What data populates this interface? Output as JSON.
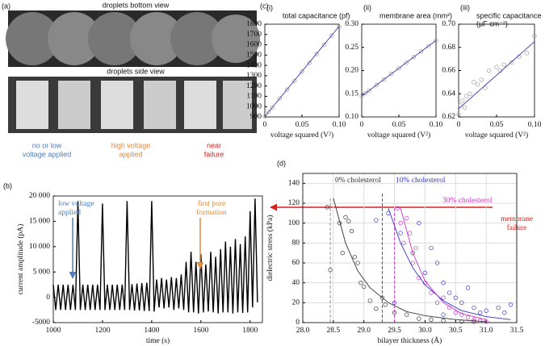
{
  "figure": {
    "label_a": "(a)",
    "label_c": "(c)",
    "bottom_view": "droplets bottom view",
    "side_view": "droplets side view",
    "captions": [
      {
        "lines": [
          "no or low",
          "voltage applied"
        ],
        "color": "#4a7fc1"
      },
      {
        "lines": [
          "high voltage",
          "applied"
        ],
        "color": "#e08a3c"
      },
      {
        "lines": [
          "near",
          "failure"
        ],
        "color": "#d62020"
      }
    ]
  },
  "chart_data": [
    {
      "type": "scatter",
      "label": "(i)",
      "title": [
        "total capacitance (pf)"
      ],
      "xlabel": "voltage squared (V²)",
      "xlim": [
        0,
        0.1
      ],
      "ylim": [
        900,
        1800
      ],
      "xticks": [
        0,
        0.05,
        {
          "value": 0.1,
          "label": "0.10"
        }
      ],
      "yticks": [
        900,
        1000,
        1100,
        1200,
        1300,
        1400,
        1500,
        1600,
        1700,
        1800
      ],
      "series": [
        {
          "mode": "markers",
          "color": "#999999",
          "x": [
            0,
            0.005,
            0.01,
            0.02,
            0.03,
            0.04,
            0.05,
            0.06,
            0.07,
            0.08,
            0.09,
            0.1
          ],
          "values": [
            905,
            950,
            990,
            1080,
            1165,
            1250,
            1340,
            1425,
            1510,
            1600,
            1690,
            1775
          ]
        },
        {
          "mode": "line",
          "color": "#3a3ab0",
          "x": [
            0,
            0.1
          ],
          "values": [
            905,
            1780
          ]
        }
      ]
    },
    {
      "type": "scatter",
      "label": "(ii)",
      "title": [
        "membrane area (mm²)"
      ],
      "xlabel": "voltage squared (V²)",
      "xlim": [
        0,
        0.1
      ],
      "ylim": [
        0.1,
        0.3
      ],
      "xticks": [
        0,
        0.05,
        {
          "value": 0.1,
          "label": "0.10"
        }
      ],
      "yticks": [
        {
          "value": 0.1,
          "label": "0.10"
        },
        0.15,
        {
          "value": 0.2,
          "label": "0.20"
        },
        0.25,
        {
          "value": 0.3,
          "label": "0.30"
        }
      ],
      "series": [
        {
          "mode": "markers",
          "color": "#999999",
          "x": [
            0,
            0.005,
            0.01,
            0.02,
            0.03,
            0.04,
            0.05,
            0.06,
            0.07,
            0.08,
            0.09,
            0.1
          ],
          "values": [
            0.145,
            0.151,
            0.157,
            0.169,
            0.181,
            0.193,
            0.205,
            0.217,
            0.229,
            0.241,
            0.253,
            0.265
          ]
        },
        {
          "mode": "line",
          "color": "#3a3ab0",
          "x": [
            0,
            0.1
          ],
          "values": [
            0.145,
            0.265
          ]
        }
      ]
    },
    {
      "type": "scatter",
      "label": "(iii)",
      "title": [
        "specific capacitance",
        "(μF cm⁻²)"
      ],
      "xlabel": "voltage squared (V²)",
      "xlim": [
        0,
        0.1
      ],
      "ylim": [
        0.62,
        0.7
      ],
      "xticks": [
        0,
        0.05,
        {
          "value": 0.1,
          "label": "0.10"
        }
      ],
      "yticks": [
        0.62,
        0.64,
        0.66,
        0.68,
        {
          "value": 0.7,
          "label": "0.70"
        }
      ],
      "series": [
        {
          "mode": "markers",
          "color": "#999999",
          "x": [
            0,
            0.002,
            0.005,
            0.008,
            0.01,
            0.015,
            0.02,
            0.025,
            0.03,
            0.035,
            0.04,
            0.05,
            0.055,
            0.06,
            0.07,
            0.08,
            0.09,
            0.1
          ],
          "values": [
            0.622,
            0.63,
            0.634,
            0.628,
            0.638,
            0.64,
            0.65,
            0.648,
            0.652,
            0.645,
            0.66,
            0.663,
            0.66,
            0.665,
            0.667,
            0.672,
            0.675,
            0.69
          ]
        },
        {
          "mode": "line",
          "color": "#3a3ab0",
          "x": [
            0,
            0.1
          ],
          "values": [
            0.627,
            0.685
          ]
        }
      ]
    },
    {
      "type": "line",
      "label": "(b)",
      "xlabel": "time (s)",
      "ylabel": "current amplitude (pA)",
      "xlim": [
        1000,
        1850
      ],
      "ylim": [
        -5000,
        20000
      ],
      "xticks": [
        1000,
        1200,
        1400,
        1600,
        1800
      ],
      "yticks": [
        -5000,
        0,
        {
          "value": 5000,
          "label": "5 000"
        },
        {
          "value": 10000,
          "label": "10 000"
        },
        {
          "value": 15000,
          "label": "15 000"
        },
        {
          "value": 20000,
          "label": "20 000"
        }
      ],
      "annotations": [
        {
          "lines": [
            "low voltage",
            "applied"
          ],
          "color": "#4a7fc1"
        },
        {
          "lines": [
            "first pore",
            "formation"
          ],
          "color": "#e08a3c"
        },
        {
          "lines": [
            "membrane",
            "failure"
          ],
          "color": "#d62020"
        }
      ],
      "series": [
        {
          "mode": "line",
          "color": "#000000",
          "x": [
            1000,
            1010,
            1020,
            1030,
            1040,
            1050,
            1060,
            1070,
            1080,
            1090,
            1100,
            1110,
            1120,
            1130,
            1140,
            1150,
            1160,
            1170,
            1180,
            1190,
            1200,
            1210,
            1220,
            1230,
            1240,
            1250,
            1260,
            1270,
            1280,
            1290,
            1300,
            1310,
            1320,
            1330,
            1340,
            1350,
            1360,
            1370,
            1380,
            1390,
            1400,
            1410,
            1420,
            1430,
            1440,
            1450,
            1460,
            1470,
            1480,
            1490,
            1500,
            1510,
            1520,
            1530,
            1540,
            1550,
            1560,
            1570,
            1580,
            1590,
            1600,
            1610,
            1620,
            1630,
            1640,
            1650,
            1660,
            1670,
            1680,
            1690,
            1700,
            1710,
            1720,
            1730,
            1740,
            1750,
            1760,
            1770,
            1780,
            1790,
            1800,
            1810,
            1820,
            1830
          ],
          "values": [
            2500,
            -2500,
            2500,
            -2500,
            2500,
            -2500,
            2500,
            -2500,
            2500,
            -2500,
            19000,
            -2500,
            2500,
            -2500,
            2500,
            -2500,
            2500,
            -2500,
            2500,
            -2500,
            18500,
            -2500,
            2500,
            -2500,
            2500,
            -2500,
            2500,
            -2500,
            2500,
            -2500,
            19000,
            -2500,
            2600,
            -2600,
            2700,
            -2600,
            2800,
            -2700,
            2900,
            -2700,
            19000,
            -2800,
            3500,
            -2000,
            3800,
            -2200,
            3500,
            -2000,
            4000,
            -2500,
            3800,
            -2200,
            4500,
            -2500,
            7000,
            -3000,
            9000,
            -3000,
            7000,
            -3200,
            8500,
            -3000,
            6500,
            -2800,
            9000,
            -3000,
            8000,
            -3200,
            9500,
            -3000,
            11000,
            -3000,
            10000,
            -3200,
            11500,
            -3000,
            10500,
            -3100,
            12000,
            -3000,
            17000,
            -2000,
            19500,
            -1000
          ]
        }
      ]
    },
    {
      "type": "scatter",
      "label": "(d)",
      "xlabel": "bilayer thickness (Å)",
      "ylabel": "dielectric stress (kPa)",
      "xlim": [
        28,
        31.5
      ],
      "ylim": [
        0,
        150
      ],
      "grid": true,
      "xticks": [
        {
          "value": 28,
          "label": "28.0"
        },
        28.5,
        {
          "value": 29,
          "label": "29.0"
        },
        29.5,
        {
          "value": 30,
          "label": "30.0"
        },
        30.5,
        {
          "value": 31,
          "label": "31.0"
        },
        31.5
      ],
      "yticks": [
        0,
        20,
        40,
        60,
        80,
        100,
        120,
        140
      ],
      "series": [
        {
          "mode": "markers",
          "name": "0% cholesterol",
          "color": "#333333",
          "x": [
            28.4,
            28.45,
            28.6,
            28.7,
            28.75,
            28.65,
            28.8,
            28.85,
            28.9,
            28.95,
            29,
            29.1,
            29.2,
            29.3,
            29.35,
            29.5,
            29.7,
            29.9,
            30.1,
            30.3,
            30.6,
            30.8
          ],
          "values": [
            116,
            53,
            100,
            106,
            102,
            70,
            92,
            66,
            60,
            40,
            36,
            22,
            14,
            25,
            18,
            10,
            8,
            4,
            3,
            2,
            1,
            1
          ]
        },
        {
          "mode": "markers",
          "name": "10% cholesterol",
          "color": "#3333cc",
          "x": [
            29.2,
            29.4,
            29.6,
            29.8,
            29.9,
            30,
            30.1,
            30.2,
            30.3,
            30.4,
            30.5,
            30.6,
            30.7,
            30.8,
            30.9,
            31,
            31.2,
            31.3,
            31.4,
            29.5,
            30.3
          ],
          "values": [
            103,
            110,
            90,
            70,
            100,
            50,
            75,
            60,
            40,
            30,
            25,
            20,
            35,
            15,
            10,
            12,
            15,
            10,
            18,
            20,
            8
          ]
        },
        {
          "mode": "markers",
          "name": "30% cholesterol",
          "color": "#cc33cc",
          "x": [
            29.55,
            29.6,
            29.65,
            29.7,
            29.75,
            29.8,
            29.85,
            29.9,
            30,
            30.1,
            30.2,
            30.3,
            30.4,
            30.5,
            30.6,
            30.7,
            30.8,
            30.9,
            31
          ],
          "values": [
            115,
            100,
            80,
            105,
            90,
            60,
            75,
            45,
            40,
            30,
            20,
            25,
            15,
            10,
            8,
            5,
            3,
            2,
            1
          ]
        },
        {
          "mode": "line",
          "color": "#333333",
          "x": [
            28.5,
            28.7,
            28.9,
            29.1,
            29.4,
            29.7,
            30,
            30.5,
            31
          ],
          "values": [
            125,
            80,
            52,
            35,
            20,
            11,
            7,
            3,
            1
          ]
        },
        {
          "mode": "line",
          "color": "#3333cc",
          "x": [
            29.4,
            29.6,
            29.8,
            30,
            30.3,
            30.6,
            31,
            31.4
          ],
          "values": [
            115,
            80,
            55,
            38,
            22,
            12,
            6,
            3
          ]
        },
        {
          "mode": "line",
          "color": "#cc33cc",
          "x": [
            29.6,
            29.8,
            30,
            30.3,
            30.6,
            31
          ],
          "values": [
            115,
            70,
            42,
            20,
            9,
            3
          ]
        },
        {
          "mode": "line",
          "dash": true,
          "color": "#888888",
          "x": [
            28.45,
            28.45
          ],
          "values": [
            0,
            125
          ]
        },
        {
          "mode": "line",
          "dash": true,
          "color": "#3333cc",
          "x": [
            29.3,
            29.3
          ],
          "values": [
            0,
            130
          ]
        },
        {
          "mode": "line",
          "dash": true,
          "color": "#cc33cc",
          "x": [
            29.5,
            29.5
          ],
          "values": [
            0,
            115
          ]
        }
      ]
    }
  ]
}
